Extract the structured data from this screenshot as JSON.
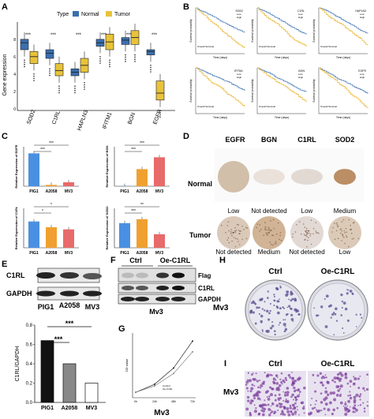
{
  "panels": {
    "A": {
      "letter": "A",
      "type_label": "Type",
      "legend": [
        "Normal",
        "Tumor"
      ],
      "ylabel": "Gene expression",
      "sig": "***",
      "genes": [
        "SOD2",
        "C1RL",
        "HAPLN3",
        "IFITM1",
        "BGN",
        "EGFR"
      ]
    },
    "B": {
      "letter": "B",
      "genes": [
        "SOD2",
        "C1RL",
        "HAPLN3",
        "IFITM1",
        "BGN",
        "EGFR"
      ],
      "legend": [
        "Low",
        "High"
      ],
      "xlabel": "Time (days)",
      "ylabel": "Survival probability",
      "overall": "Overall Survival"
    },
    "C": {
      "letter": "C",
      "ylabels": [
        "Relative Expression of EGFR",
        "Relative Expression of BGN",
        "Relative Expression of C1RL",
        "Relative Expression of SOD2"
      ],
      "categories": [
        "PIG1",
        "A2058",
        "MV3"
      ],
      "sig": "***",
      "sig2": "*",
      "sig3": "**"
    },
    "D": {
      "letter": "D",
      "genes": [
        "EGFR",
        "BGN",
        "C1RL",
        "SOD2"
      ],
      "rows": [
        "Normal",
        "Tumor"
      ],
      "normal_levels": [
        "Low",
        "Not detected",
        "Low",
        "Medium"
      ],
      "tumor_levels": [
        "Not detected",
        "Medium",
        "Not detected",
        "Low"
      ]
    },
    "E": {
      "letter": "E",
      "blot_labels": [
        "C1RL",
        "GAPDH"
      ],
      "lanes": [
        "PIG1",
        "A2058",
        "MV3"
      ],
      "ylabel": "C1RL/GAPDH",
      "sig": "***"
    },
    "F": {
      "letter": "F",
      "cols": [
        "Ctrl",
        "Oe-C1RL"
      ],
      "blot_labels": [
        "Flag",
        "C1RL",
        "GAPDH"
      ],
      "cell": "Mv3"
    },
    "G": {
      "letter": "G",
      "ylabel": "OD value",
      "cell": "Mv3",
      "legend": [
        "Control",
        "Oe-C1RL"
      ],
      "times": [
        "0h",
        "24h",
        "48h",
        "72h"
      ]
    },
    "H": {
      "letter": "H",
      "cols": [
        "Ctrl",
        "Oe-C1RL"
      ],
      "row": "Mv3"
    },
    "I": {
      "letter": "I",
      "cols": [
        "Ctrl",
        "Oe-C1RL"
      ],
      "row": "Mv3"
    }
  },
  "colors": {
    "normal": "#3a6fb0",
    "tumor": "#e8c33a",
    "blue": "#4a90e2",
    "orange": "#f0a030",
    "red": "#e86a6a",
    "gray": "#888888"
  },
  "chart_data": [
    {
      "type": "bar",
      "panel": "E",
      "categories": [
        "PIG1",
        "A2058",
        "MV3"
      ],
      "values": [
        0.64,
        0.4,
        0.2
      ],
      "ylim": [
        0,
        0.8
      ],
      "yticks": [
        "0.0",
        "0.2",
        "0.4",
        "0.6",
        "0.8"
      ]
    },
    {
      "type": "line",
      "panel": "G",
      "x": [
        "0h",
        "24h",
        "48h",
        "72h"
      ],
      "series": [
        {
          "name": "Control",
          "values": [
            0.1,
            0.25,
            0.55,
            1.05
          ]
        },
        {
          "name": "Oe-C1RL",
          "values": [
            0.1,
            0.22,
            0.45,
            0.85
          ]
        }
      ],
      "ylim": [
        0,
        1.2
      ]
    }
  ]
}
